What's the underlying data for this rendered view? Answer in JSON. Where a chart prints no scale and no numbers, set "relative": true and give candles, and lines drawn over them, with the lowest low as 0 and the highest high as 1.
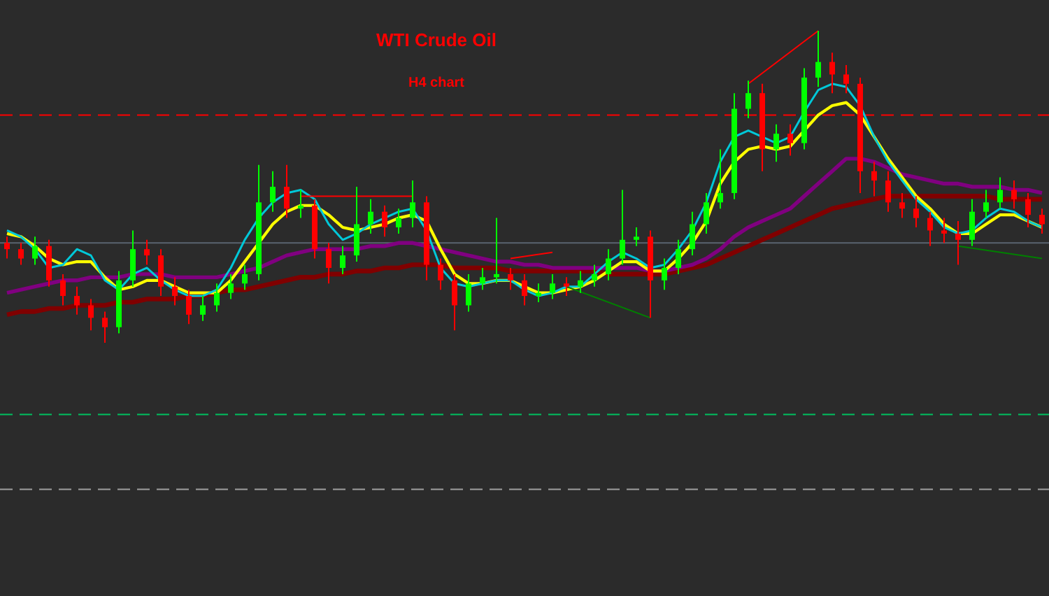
{
  "chart_data": {
    "type": "candlestick",
    "title": "WTI Crude Oil",
    "subtitle": "H4 chart",
    "relative": true,
    "categories": [
      null,
      null,
      null,
      null,
      null,
      null,
      null,
      null,
      null,
      null,
      null,
      null,
      null,
      null,
      null,
      null,
      null,
      null,
      null,
      null,
      null,
      null,
      null,
      null,
      null,
      null,
      null,
      null,
      null,
      null,
      null,
      null,
      null,
      null,
      null,
      null,
      null,
      null,
      null,
      null,
      null,
      null,
      null,
      null,
      null,
      null,
      null,
      null,
      null,
      null,
      null,
      null,
      null,
      null,
      null,
      null,
      null,
      null,
      null,
      null,
      null,
      null,
      null,
      null,
      null,
      null,
      null,
      null,
      null,
      null,
      null,
      null,
      null,
      null,
      null
    ],
    "ohlc": [
      [
        0.32,
        0.34,
        0.27,
        0.3
      ],
      [
        0.3,
        0.32,
        0.25,
        0.27
      ],
      [
        0.27,
        0.34,
        0.25,
        0.31
      ],
      [
        0.31,
        0.33,
        0.18,
        0.2
      ],
      [
        0.2,
        0.22,
        0.12,
        0.15
      ],
      [
        0.15,
        0.18,
        0.09,
        0.12
      ],
      [
        0.12,
        0.14,
        0.04,
        0.08
      ],
      [
        0.08,
        0.1,
        0,
        0.05
      ],
      [
        0.05,
        0.23,
        0.03,
        0.2
      ],
      [
        0.2,
        0.36,
        0.18,
        0.3
      ],
      [
        0.3,
        0.33,
        0.25,
        0.28
      ],
      [
        0.28,
        0.3,
        0.15,
        0.18
      ],
      [
        0.18,
        0.21,
        0.12,
        0.15
      ],
      [
        0.15,
        0.17,
        0.06,
        0.09
      ],
      [
        0.09,
        0.15,
        0.07,
        0.12
      ],
      [
        0.12,
        0.19,
        0.1,
        0.16
      ],
      [
        0.16,
        0.22,
        0.14,
        0.19
      ],
      [
        0.19,
        0.25,
        0.17,
        0.22
      ],
      [
        0.22,
        0.57,
        0.2,
        0.45
      ],
      [
        0.45,
        0.55,
        0.42,
        0.5
      ],
      [
        0.5,
        0.57,
        0.4,
        0.43
      ],
      [
        0.43,
        0.49,
        0.4,
        0.44
      ],
      [
        0.44,
        0.46,
        0.27,
        0.3
      ],
      [
        0.3,
        0.32,
        0.19,
        0.24
      ],
      [
        0.24,
        0.31,
        0.22,
        0.28
      ],
      [
        0.28,
        0.5,
        0.26,
        0.38
      ],
      [
        0.38,
        0.46,
        0.35,
        0.42
      ],
      [
        0.42,
        0.44,
        0.34,
        0.37
      ],
      [
        0.37,
        0.43,
        0.35,
        0.4
      ],
      [
        0.4,
        0.52,
        0.37,
        0.45
      ],
      [
        0.45,
        0.47,
        0.2,
        0.25
      ],
      [
        0.25,
        0.27,
        0.17,
        0.2
      ],
      [
        0.2,
        0.22,
        0.04,
        0.12
      ],
      [
        0.12,
        0.22,
        0.1,
        0.19
      ],
      [
        0.19,
        0.24,
        0.17,
        0.21
      ],
      [
        0.21,
        0.4,
        0.19,
        0.22
      ],
      [
        0.22,
        0.24,
        0.17,
        0.2
      ],
      [
        0.2,
        0.22,
        0.12,
        0.15
      ],
      [
        0.15,
        0.19,
        0.13,
        0.16
      ],
      [
        0.16,
        0.22,
        0.14,
        0.19
      ],
      [
        0.19,
        0.21,
        0.15,
        0.18
      ],
      [
        0.18,
        0.23,
        0.16,
        0.2
      ],
      [
        0.2,
        0.25,
        0.18,
        0.22
      ],
      [
        0.22,
        0.3,
        0.2,
        0.27
      ],
      [
        0.27,
        0.49,
        0.25,
        0.33
      ],
      [
        0.33,
        0.37,
        0.31,
        0.34
      ],
      [
        0.34,
        0.36,
        0.08,
        0.2
      ],
      [
        0.2,
        0.27,
        0.17,
        0.24
      ],
      [
        0.24,
        0.33,
        0.22,
        0.3
      ],
      [
        0.3,
        0.42,
        0.28,
        0.38
      ],
      [
        0.38,
        0.48,
        0.35,
        0.45
      ],
      [
        0.45,
        0.62,
        0.43,
        0.48
      ],
      [
        0.48,
        0.8,
        0.46,
        0.75
      ],
      [
        0.75,
        0.84,
        0.72,
        0.8
      ],
      [
        0.8,
        0.83,
        0.55,
        0.62
      ],
      [
        0.62,
        0.7,
        0.58,
        0.67
      ],
      [
        0.67,
        0.7,
        0.6,
        0.64
      ],
      [
        0.64,
        0.88,
        0.62,
        0.85
      ],
      [
        0.85,
        1,
        0.82,
        0.9
      ],
      [
        0.9,
        0.93,
        0.8,
        0.86
      ],
      [
        0.86,
        0.89,
        0.8,
        0.83
      ],
      [
        0.83,
        0.85,
        0.48,
        0.55
      ],
      [
        0.55,
        0.58,
        0.47,
        0.52
      ],
      [
        0.52,
        0.55,
        0.42,
        0.45
      ],
      [
        0.45,
        0.48,
        0.4,
        0.43
      ],
      [
        0.43,
        0.47,
        0.37,
        0.4
      ],
      [
        0.4,
        0.42,
        0.31,
        0.36
      ],
      [
        0.36,
        0.4,
        0.32,
        0.35
      ],
      [
        0.35,
        0.39,
        0.25,
        0.33
      ],
      [
        0.33,
        0.46,
        0.31,
        0.42
      ],
      [
        0.42,
        0.49,
        0.4,
        0.45
      ],
      [
        0.45,
        0.53,
        0.43,
        0.49
      ],
      [
        0.49,
        0.52,
        0.43,
        0.46
      ],
      [
        0.46,
        0.48,
        0.37,
        0.41
      ],
      [
        0.41,
        0.43,
        0.35,
        0.38
      ]
    ],
    "series": [
      {
        "type": "line",
        "color": "#800000",
        "values": [
          0.09,
          0.1,
          0.1,
          0.11,
          0.11,
          0.12,
          0.12,
          0.12,
          0.13,
          0.13,
          0.14,
          0.14,
          0.14,
          0.15,
          0.15,
          0.16,
          0.17,
          0.17,
          0.18,
          0.19,
          0.2,
          0.21,
          0.21,
          0.22,
          0.22,
          0.23,
          0.23,
          0.24,
          0.24,
          0.25,
          0.25,
          0.25,
          0.24,
          0.24,
          0.24,
          0.24,
          0.23,
          0.23,
          0.23,
          0.23,
          0.23,
          0.23,
          0.23,
          0.22,
          0.22,
          0.22,
          0.22,
          0.22,
          0.23,
          0.24,
          0.25,
          0.27,
          0.29,
          0.31,
          0.33,
          0.35,
          0.37,
          0.39,
          0.41,
          0.43,
          0.44,
          0.45,
          0.46,
          0.47,
          0.47,
          0.47,
          0.47,
          0.47,
          0.47,
          0.47,
          0.47,
          0.46,
          0.46,
          0.46,
          0.46
        ]
      },
      {
        "type": "line",
        "color": "#800080",
        "values": [
          0.16,
          0.17,
          0.18,
          0.19,
          0.2,
          0.2,
          0.21,
          0.21,
          0.21,
          0.22,
          0.22,
          0.22,
          0.21,
          0.21,
          0.21,
          0.21,
          0.22,
          0.23,
          0.24,
          0.26,
          0.28,
          0.29,
          0.3,
          0.3,
          0.3,
          0.3,
          0.31,
          0.31,
          0.32,
          0.32,
          0.31,
          0.3,
          0.29,
          0.28,
          0.27,
          0.26,
          0.26,
          0.25,
          0.25,
          0.24,
          0.24,
          0.24,
          0.24,
          0.24,
          0.24,
          0.24,
          0.23,
          0.23,
          0.24,
          0.25,
          0.27,
          0.3,
          0.34,
          0.37,
          0.39,
          0.41,
          0.43,
          0.47,
          0.51,
          0.55,
          0.59,
          0.59,
          0.58,
          0.56,
          0.54,
          0.53,
          0.52,
          0.51,
          0.51,
          0.5,
          0.5,
          0.5,
          0.49,
          0.49,
          0.48
        ]
      },
      {
        "type": "line",
        "color": "#ffff00",
        "values": [
          0.35,
          0.34,
          0.31,
          0.27,
          0.25,
          0.26,
          0.26,
          0.21,
          0.17,
          0.18,
          0.2,
          0.2,
          0.18,
          0.16,
          0.16,
          0.16,
          0.2,
          0.26,
          0.32,
          0.38,
          0.42,
          0.44,
          0.44,
          0.41,
          0.37,
          0.36,
          0.37,
          0.38,
          0.4,
          0.41,
          0.39,
          0.3,
          0.22,
          0.19,
          0.19,
          0.2,
          0.2,
          0.18,
          0.16,
          0.16,
          0.17,
          0.18,
          0.2,
          0.23,
          0.26,
          0.26,
          0.23,
          0.23,
          0.27,
          0.32,
          0.39,
          0.51,
          0.58,
          0.62,
          0.63,
          0.62,
          0.63,
          0.68,
          0.73,
          0.76,
          0.77,
          0.73,
          0.66,
          0.59,
          0.53,
          0.47,
          0.43,
          0.38,
          0.35,
          0.35,
          0.38,
          0.41,
          0.41,
          0.39,
          0.37
        ]
      },
      {
        "type": "line",
        "color": "#00c8d8",
        "values": [
          0.36,
          0.34,
          0.3,
          0.24,
          0.25,
          0.3,
          0.28,
          0.2,
          0.17,
          0.22,
          0.24,
          0.2,
          0.17,
          0.15,
          0.15,
          0.17,
          0.24,
          0.33,
          0.4,
          0.45,
          0.48,
          0.49,
          0.46,
          0.38,
          0.33,
          0.35,
          0.38,
          0.4,
          0.42,
          0.43,
          0.36,
          0.24,
          0.19,
          0.18,
          0.19,
          0.2,
          0.2,
          0.17,
          0.15,
          0.16,
          0.18,
          0.18,
          0.22,
          0.26,
          0.29,
          0.27,
          0.24,
          0.25,
          0.3,
          0.36,
          0.45,
          0.58,
          0.66,
          0.68,
          0.66,
          0.64,
          0.66,
          0.74,
          0.81,
          0.83,
          0.82,
          0.76,
          0.66,
          0.58,
          0.52,
          0.46,
          0.42,
          0.37,
          0.35,
          0.36,
          0.4,
          0.43,
          0.42,
          0.39,
          0.37
        ]
      },
      {
        "type": "line",
        "color": "#ff0000",
        "values": [
          null,
          null,
          null,
          null,
          null,
          null,
          null,
          null,
          null,
          null,
          null,
          null,
          null,
          null,
          null,
          null,
          null,
          null,
          null,
          null,
          null,
          0.47,
          null,
          null,
          null,
          null,
          null,
          null,
          null,
          0.47,
          null,
          null,
          null,
          null,
          null,
          null,
          null,
          null,
          null,
          null,
          null,
          null,
          null,
          null,
          null,
          null,
          null,
          null,
          null,
          null,
          null,
          null,
          null,
          null,
          null,
          null,
          null,
          null,
          null,
          null,
          null,
          null,
          null,
          null,
          null,
          null,
          null,
          null,
          null,
          null,
          null,
          null,
          null,
          null,
          null
        ]
      },
      {
        "type": "line",
        "color": "#ff0000",
        "values": [
          null,
          null,
          null,
          null,
          null,
          null,
          null,
          null,
          null,
          null,
          null,
          null,
          null,
          null,
          null,
          null,
          null,
          null,
          null,
          null,
          null,
          null,
          null,
          null,
          null,
          null,
          null,
          null,
          null,
          null,
          null,
          null,
          null,
          null,
          null,
          null,
          0.27,
          null,
          null,
          0.29,
          null,
          null,
          null,
          null,
          null,
          null,
          null,
          null,
          null,
          null,
          null,
          null,
          null,
          null,
          null,
          null,
          null,
          null,
          null,
          null,
          null,
          null,
          null,
          null,
          null,
          null,
          null,
          null,
          null,
          null,
          null,
          null,
          null,
          null,
          null
        ]
      },
      {
        "type": "line",
        "color": "#ff0000",
        "values": [
          null,
          null,
          null,
          null,
          null,
          null,
          null,
          null,
          null,
          null,
          null,
          null,
          null,
          null,
          null,
          null,
          null,
          null,
          null,
          null,
          null,
          null,
          null,
          null,
          null,
          null,
          null,
          null,
          null,
          null,
          null,
          null,
          null,
          null,
          null,
          null,
          null,
          null,
          null,
          null,
          null,
          null,
          null,
          null,
          null,
          null,
          null,
          null,
          null,
          null,
          null,
          null,
          null,
          0.83,
          null,
          null,
          null,
          null,
          1,
          null,
          null,
          null,
          null,
          null,
          null,
          null,
          null,
          null,
          null,
          null,
          null,
          null,
          null,
          null,
          null
        ]
      },
      {
        "type": "line",
        "color": "#008000",
        "values": [
          null,
          null,
          null,
          null,
          null,
          null,
          null,
          null,
          null,
          null,
          null,
          null,
          null,
          null,
          null,
          null,
          null,
          null,
          null,
          null,
          null,
          null,
          null,
          null,
          null,
          null,
          null,
          null,
          null,
          null,
          null,
          null,
          null,
          null,
          null,
          null,
          null,
          null,
          null,
          null,
          0.18,
          null,
          null,
          null,
          null,
          null,
          0.08,
          null,
          null,
          null,
          null,
          null,
          null,
          null,
          null,
          null,
          null,
          null,
          null,
          null,
          null,
          null,
          null,
          null,
          null,
          null,
          null,
          null,
          null,
          null,
          null,
          null,
          null,
          null,
          null
        ]
      },
      {
        "type": "line",
        "color": "#008000",
        "values": [
          null,
          null,
          null,
          null,
          null,
          null,
          null,
          null,
          null,
          null,
          null,
          null,
          null,
          null,
          null,
          null,
          null,
          null,
          null,
          null,
          null,
          null,
          null,
          null,
          null,
          null,
          null,
          null,
          null,
          null,
          null,
          null,
          null,
          null,
          null,
          null,
          null,
          null,
          null,
          null,
          null,
          null,
          null,
          null,
          null,
          null,
          null,
          null,
          null,
          null,
          null,
          null,
          null,
          null,
          null,
          null,
          null,
          null,
          null,
          null,
          null,
          null,
          null,
          null,
          null,
          null,
          null,
          null,
          0.31,
          null,
          null,
          null,
          null,
          null,
          0.27
        ]
      }
    ],
    "ref_lines": [
      {
        "axis": "y",
        "value": 0.73,
        "color": "#ff0000",
        "line_style": "dashed"
      },
      {
        "axis": "y",
        "value": 0.32,
        "color": "#5a6470",
        "line_style": "solid"
      },
      {
        "axis": "y",
        "value": -0.23,
        "color": "#00c060",
        "line_style": "dashed"
      },
      {
        "axis": "y",
        "value": -0.47,
        "color": "#a0a0a0",
        "line_style": "dashed"
      }
    ]
  }
}
